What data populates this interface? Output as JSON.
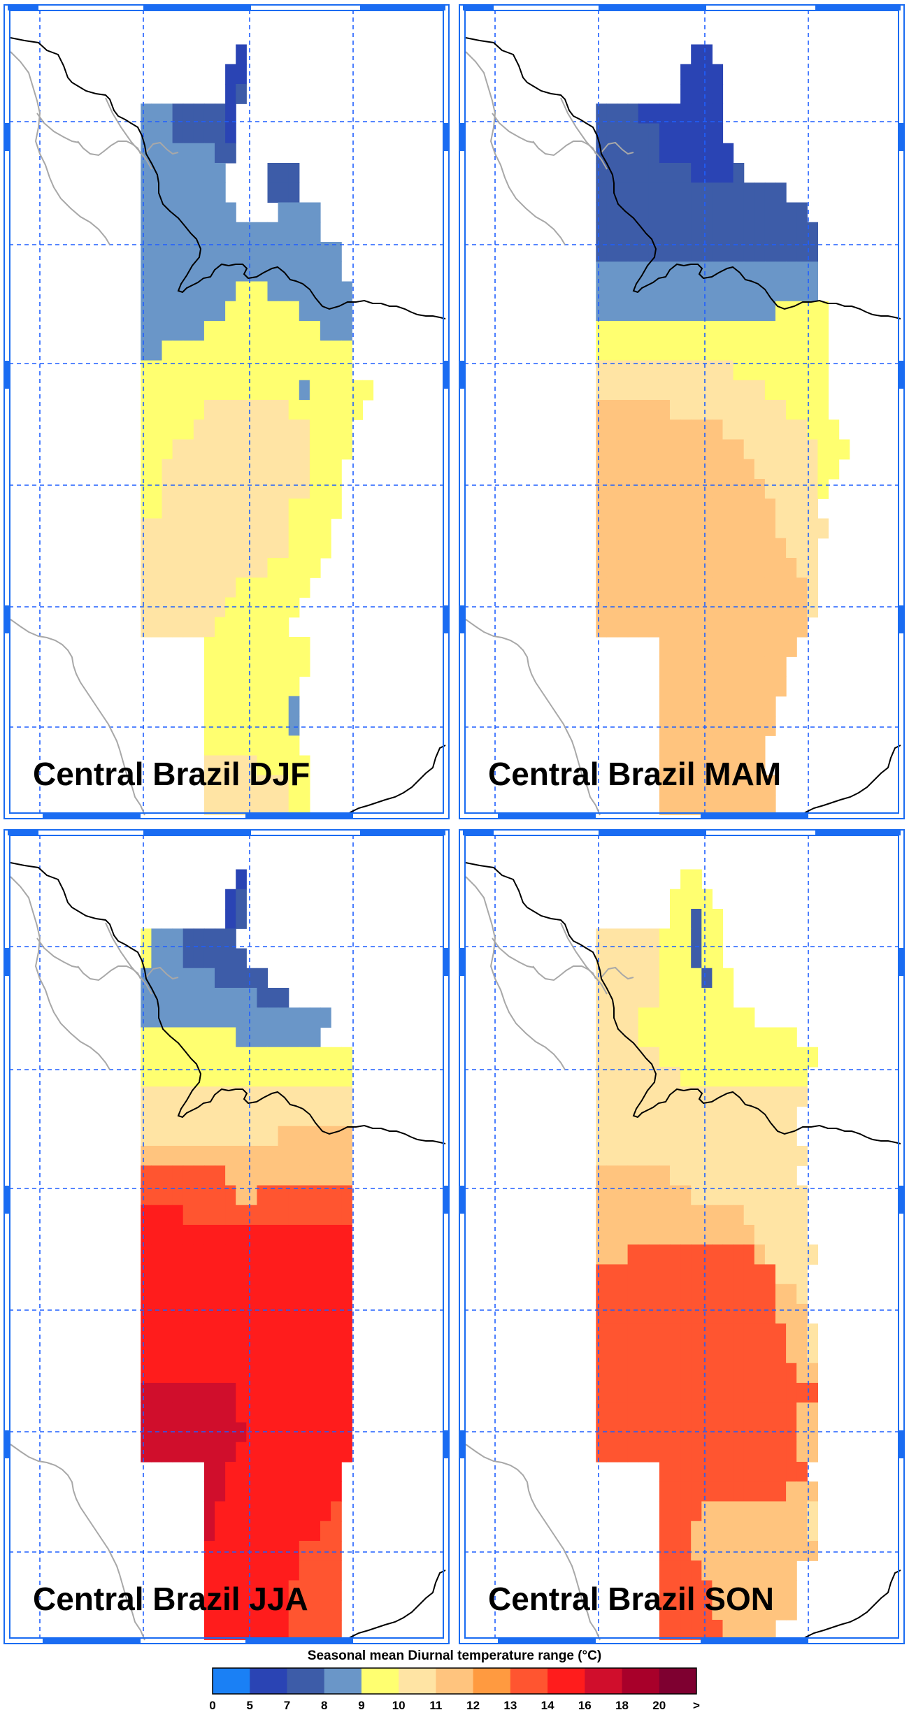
{
  "panels": [
    {
      "title": "Central Brazil DJF",
      "grid": [
        "...........................................",
        "...........................................",
        "......................6....................",
        ".....................56....................",
        ".....................54....................",
        ".............333444445.....................",
        ".............333444445.....................",
        ".............333333344.....................",
        ".............33333333....444...............",
        ".............33333333....444...............",
        ".............333333333....3333.............",
        ".............33333333333333333.............",
        ".............3333333333333333333...........",
        ".............3333333333333333333...........",
        ".............33333333399933333333..........",
        ".............33333333999999933333..........",
        ".............33333399999999999333..........",
        ".............33999999999999999999..........",
        ".............99999999999999999999..........",
        ".............9999999999999993999999........",
        ".............999999111111119999999.........",
        ".............99999111111111119999..........",
        ".............99911111111111119999..........",
        ".............9911111111111111999...........",
        ".............9911111111111111999...........",
        ".............9911111111111199999...........",
        ".............111111111111119999............",
        ".............111111111111119999............",
        ".............11111111111199999.............",
        ".............1111111119999999..............",
        ".............111111119999999...............",
        ".............11111119999999................",
        "...................9999999999..............",
        "...................9999999999..............",
        "...................999999999...............",
        "...................999999993...............",
        "...................999999993...............",
        "...................999999999...............",
        "...................1111199999..............",
        "...................1111111199..............",
        "...................1111111199..............",
        "..........................................."
      ]
    },
    {
      "title": "Central Brazil MAM",
      "grid": [
        "...........................................",
        "...........................................",
        "......................55...................",
        ".....................5666..................",
        ".....................5666..................",
        ".............444455566666..................",
        ".............444444556665..................",
        ".............4444445566555.................",
        ".............44444444455554................",
        ".............444444444444444444............",
        ".............44444444444444444444..........",
        ".............444444444444444444444.........",
        ".............444444444444444444444.........",
        ".............333333333333333333333.........",
        ".............333333333333333333333.........",
        ".............3333333333333333399999........",
        ".............9999999999999999999999........",
        ".............9999999999999999999999........",
        ".............1111111111111999999999........",
        ".............1111111111111111999999........",
        ".............2222222111111111119999........",
        ".............22222222222211111111999.......",
        ".............222222222222221111111999......",
        ".............22222222222222211111199.......",
        ".............2222222222222222111119........",
        ".............222222222222222221111.........",
        ".............2222222222222222211111........",
        ".............222222222222222222111.........",
        ".............222222222222222222211.........",
        ".............222222222222222222221.........",
        ".............222222222222222222221.........",
        ".............22222222222222222222..........",
        "...................2222222222222...........",
        "...................222222222222............",
        "...................222222222222............",
        "...................22222222222.............",
        "...................22222222222.............",
        "...................2222222222..............",
        "...................2222222222..............",
        "...................22222222222.............",
        "...................22222222222.............",
        "..........................................."
      ]
    },
    {
      "title": "Central Brazil JJA",
      "grid": [
        "...........................................",
        "...........................................",
        "......................5....................",
        ".....................54....................",
        ".....................54....................",
        ".............933344444.....................",
        ".............9333444444....................",
        ".............333333344444..................",
        ".............33333333333444................",
        ".............333333333333333333............",
        ".............99999999933333333.............",
        ".............99999999999999999999..........",
        ".............99999999999999999999..........",
        ".............11111111111111111111..........",
        ".............11111111111111111111..........",
        ".............11111111111112222222..........",
        ".............22222222222222222222..........",
        ".............88888888222222222222..........",
        ".............88888888822888888888..........",
        ".............77778888888888888888..........",
        ".............77777777777777777777..........",
        ".............77777777777777777777..........",
        ".............77777777777777777777..........",
        ".............77777777777777777777..........",
        ".............77777777777777777777..........",
        ".............77777777777777777777..........",
        ".............77777777777777777777..........",
        ".............77777777777777777777..........",
        ".............00000000077777777777..........",
        ".............00000000077777777777..........",
        ".............00000000007777777777..........",
        ".............00000000077777777777..........",
        "...................0077777777777...........",
        "...................0077777777777...........",
        "...................0777777777778...........",
        "...................0777777777788...........",
        "...................7777777778888...........",
        "...................7777777778888...........",
        "...................7777777788888...........",
        "...................7777777788888...........",
        "...................7777777788888...........",
        "..........................................."
      ]
    },
    {
      "title": "Central Brazil SON",
      "grid": [
        "...........................................",
        "...........................................",
        ".....................99....................",
        "....................9999...................",
        "....................99499..................",
        ".............111111999499..................",
        ".............111111999499..................",
        ".............1111119999499.................",
        ".............1111119999999.................",
        ".............111199999999999...............",
        ".............1111999999999999999...........",
        ".............111111999999999999999.........",
        ".............11111111999999999999..........",
        ".............11111111111111111111..........",
        ".............1111111111111111111...........",
        ".............1111111111111111111...........",
        ".............11111111111111111111..........",
        ".............2222222111111111111...........",
        ".............22222222211111111111..........",
        ".............22222222222222111111..........",
        ".............22222222222222211111..........",
        ".............222888888888888211111.........",
        ".............88888888888888888111..........",
        ".............88888888888888888221..........",
        ".............88888888888888888222..........",
        ".............888888888888888888221.........",
        ".............888888888888888888221.........",
        ".............888888888888888888822.........",
        ".............888888888888888888888.........",
        ".............888888888888888888822.........",
        ".............888888888888888888822.........",
        ".............888888888888888888822.........",
        "...................88888888888888..........",
        "...................888888888888222.........",
        "...................888822222222221.........",
        "...................888222222222221.........",
        "...................888222222222222.........",
        "...................8888222222222...........",
        "...................8888822222222...........",
        "...................8888822222222...........",
        "...................88888822222.............",
        "..........................................."
      ]
    }
  ],
  "colorbar": {
    "title": "Seasonal mean Diurnal temperature range (°C)",
    "tick_labels": [
      "0",
      "5",
      "7",
      "8",
      "9",
      "10",
      "11",
      "12",
      "13",
      "14",
      "16",
      "18",
      "20",
      ">"
    ],
    "colors": [
      "#1a80f5",
      "#2a44b4",
      "#3d5ca8",
      "#6a96c8",
      "#ffff70",
      "#ffe4a4",
      "#ffc47e",
      "#ff9a40",
      "#ff5530",
      "#ff1c1c",
      "#d00e2c",
      "#a8002a",
      "#7e0030"
    ]
  },
  "map_style": {
    "grid_color": "#1f5fff",
    "coast_color": "#000000",
    "border_color": "#a8a8a8",
    "frame_color": "#1a6cf2"
  }
}
